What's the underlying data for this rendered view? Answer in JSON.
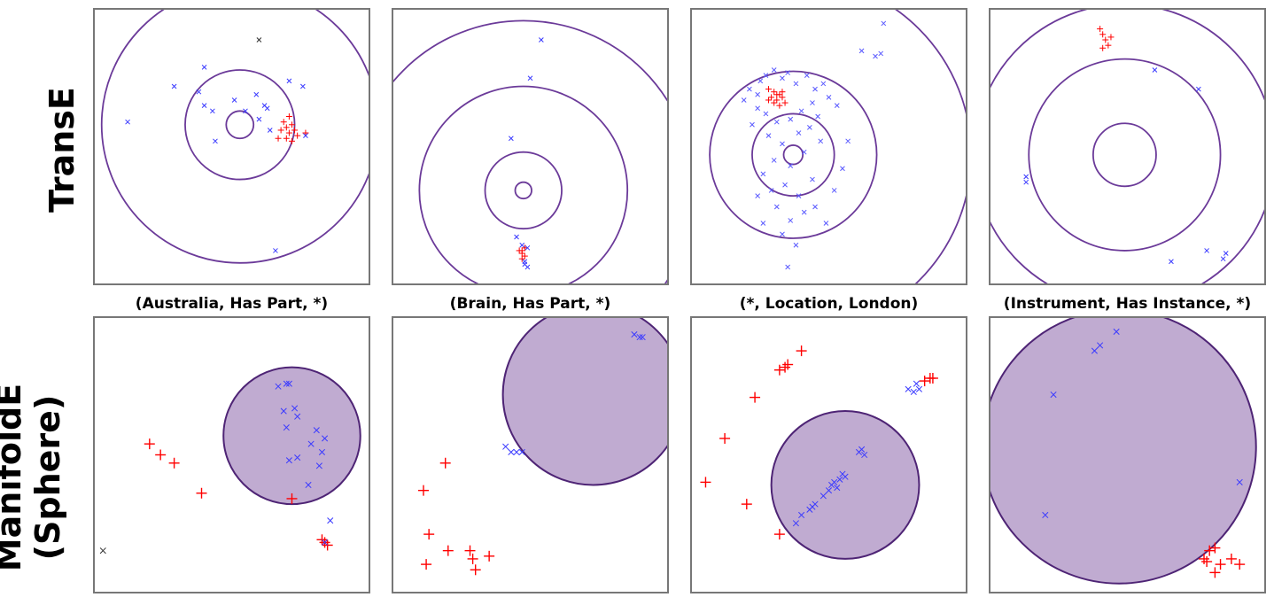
{
  "row_labels": [
    "TransE",
    "ManifoldE",
    "(Sphere)"
  ],
  "column_titles": [
    "(Australia, Has Part, *)",
    "(Brain, Has Part, *)",
    "(*, Location, London)",
    "(Instrument, Has Instance, *)"
  ],
  "colors": {
    "ring": "#6b3a99",
    "sphere_fill": "#b9a2cc",
    "sphere_stroke": "#4e2475",
    "positive": "#ff0000",
    "negative": "#3a3aff",
    "other": "#333333"
  },
  "chart_data": [
    {
      "type": "scatter",
      "row": "TransE",
      "title": "(Australia, Has Part, *)",
      "xlim": [
        0,
        1
      ],
      "ylim": [
        0,
        1
      ],
      "grid": false,
      "rings": {
        "center": [
          0.53,
          0.42
        ],
        "radii": [
          0.05,
          0.2,
          0.505
        ]
      },
      "series": [
        {
          "marker": "+",
          "color": "#ff0000",
          "points": [
            [
              0.69,
              0.41
            ],
            [
              0.7,
              0.43
            ],
            [
              0.72,
              0.42
            ],
            [
              0.68,
              0.44
            ],
            [
              0.71,
              0.45
            ],
            [
              0.73,
              0.44
            ],
            [
              0.67,
              0.47
            ],
            [
              0.7,
              0.47
            ],
            [
              0.74,
              0.46
            ],
            [
              0.72,
              0.48
            ],
            [
              0.71,
              0.39
            ],
            [
              0.77,
              0.45
            ]
          ]
        },
        {
          "marker": "x",
          "color": "#3a3aff",
          "points": [
            [
              0.12,
              0.41
            ],
            [
              0.29,
              0.28
            ],
            [
              0.4,
              0.21
            ],
            [
              0.4,
              0.35
            ],
            [
              0.43,
              0.37
            ],
            [
              0.38,
              0.3
            ],
            [
              0.51,
              0.33
            ],
            [
              0.59,
              0.31
            ],
            [
              0.62,
              0.35
            ],
            [
              0.63,
              0.36
            ],
            [
              0.6,
              0.4
            ],
            [
              0.64,
              0.44
            ],
            [
              0.55,
              0.37
            ],
            [
              0.71,
              0.26
            ],
            [
              0.76,
              0.28
            ],
            [
              0.77,
              0.46
            ],
            [
              0.44,
              0.48
            ],
            [
              0.66,
              0.88
            ]
          ]
        },
        {
          "marker": "x",
          "color": "#333333",
          "points": [
            [
              0.6,
              0.11
            ]
          ]
        }
      ]
    },
    {
      "type": "scatter",
      "row": "TransE",
      "title": "(Brain, Has Part, *)",
      "xlim": [
        0,
        1
      ],
      "ylim": [
        0,
        1
      ],
      "grid": false,
      "rings": {
        "center": [
          0.475,
          0.66
        ],
        "radii": [
          0.03,
          0.14,
          0.38,
          0.62
        ]
      },
      "series": [
        {
          "marker": "+",
          "color": "#ff0000",
          "points": [
            [
              0.47,
              0.88
            ],
            [
              0.48,
              0.87
            ],
            [
              0.47,
              0.89
            ],
            [
              0.48,
              0.9
            ],
            [
              0.46,
              0.88
            ],
            [
              0.47,
              0.91
            ]
          ]
        },
        {
          "marker": "x",
          "color": "#3a3aff",
          "points": [
            [
              0.54,
              0.11
            ],
            [
              0.5,
              0.25
            ],
            [
              0.43,
              0.47
            ],
            [
              0.45,
              0.83
            ],
            [
              0.47,
              0.86
            ],
            [
              0.49,
              0.87
            ],
            [
              0.48,
              0.92
            ],
            [
              0.49,
              0.94
            ],
            [
              0.48,
              0.93
            ]
          ]
        }
      ]
    },
    {
      "type": "scatter",
      "row": "TransE",
      "title": "(*, Location, London)",
      "xlim": [
        0,
        1
      ],
      "ylim": [
        0,
        1
      ],
      "grid": false,
      "rings": {
        "center": [
          0.37,
          0.53
        ],
        "radii": [
          0.035,
          0.15,
          0.305,
          0.65
        ]
      },
      "series": [
        {
          "marker": "+",
          "color": "#ff0000",
          "points": [
            [
              0.28,
              0.29
            ],
            [
              0.3,
              0.3
            ],
            [
              0.32,
              0.31
            ],
            [
              0.29,
              0.32
            ],
            [
              0.31,
              0.33
            ],
            [
              0.33,
              0.32
            ],
            [
              0.3,
              0.34
            ],
            [
              0.32,
              0.35
            ],
            [
              0.34,
              0.34
            ],
            [
              0.28,
              0.33
            ],
            [
              0.31,
              0.31
            ],
            [
              0.33,
              0.3
            ]
          ]
        },
        {
          "marker": "x",
          "color": "#5a5aff",
          "points": [
            [
              0.25,
              0.26
            ],
            [
              0.27,
              0.24
            ],
            [
              0.3,
              0.22
            ],
            [
              0.33,
              0.25
            ],
            [
              0.35,
              0.23
            ],
            [
              0.38,
              0.27
            ],
            [
              0.42,
              0.24
            ],
            [
              0.45,
              0.29
            ],
            [
              0.48,
              0.27
            ],
            [
              0.5,
              0.32
            ],
            [
              0.44,
              0.34
            ],
            [
              0.4,
              0.37
            ],
            [
              0.36,
              0.4
            ],
            [
              0.31,
              0.41
            ],
            [
              0.27,
              0.38
            ],
            [
              0.24,
              0.36
            ],
            [
              0.22,
              0.42
            ],
            [
              0.28,
              0.46
            ],
            [
              0.33,
              0.49
            ],
            [
              0.39,
              0.45
            ],
            [
              0.43,
              0.43
            ],
            [
              0.46,
              0.39
            ],
            [
              0.47,
              0.48
            ],
            [
              0.41,
              0.52
            ],
            [
              0.36,
              0.57
            ],
            [
              0.3,
              0.55
            ],
            [
              0.26,
              0.6
            ],
            [
              0.29,
              0.66
            ],
            [
              0.34,
              0.64
            ],
            [
              0.39,
              0.68
            ],
            [
              0.44,
              0.62
            ],
            [
              0.41,
              0.74
            ],
            [
              0.36,
              0.77
            ],
            [
              0.31,
              0.72
            ],
            [
              0.26,
              0.78
            ],
            [
              0.33,
              0.82
            ],
            [
              0.45,
              0.72
            ],
            [
              0.49,
              0.78
            ],
            [
              0.52,
              0.66
            ],
            [
              0.55,
              0.58
            ],
            [
              0.57,
              0.48
            ],
            [
              0.53,
              0.35
            ],
            [
              0.21,
              0.29
            ],
            [
              0.19,
              0.33
            ],
            [
              0.24,
              0.31
            ],
            [
              0.62,
              0.15
            ],
            [
              0.67,
              0.17
            ],
            [
              0.69,
              0.16
            ],
            [
              0.7,
              0.05
            ],
            [
              0.35,
              0.94
            ],
            [
              0.38,
              0.86
            ],
            [
              0.24,
              0.68
            ]
          ]
        }
      ]
    },
    {
      "type": "scatter",
      "row": "TransE",
      "title": "(Instrument, Has Instance, *)",
      "xlim": [
        0,
        1
      ],
      "ylim": [
        0,
        1
      ],
      "grid": false,
      "rings": {
        "center": [
          0.49,
          0.53
        ],
        "radii": [
          0.115,
          0.35,
          0.55,
          0.81
        ]
      },
      "series": [
        {
          "marker": "+",
          "color": "#ff0000",
          "points": [
            [
              0.4,
              0.07
            ],
            [
              0.41,
              0.09
            ],
            [
              0.42,
              0.11
            ],
            [
              0.44,
              0.1
            ],
            [
              0.43,
              0.13
            ],
            [
              0.41,
              0.14
            ]
          ]
        },
        {
          "marker": "x",
          "color": "#3a3aff",
          "points": [
            [
              0.6,
              0.22
            ],
            [
              0.76,
              0.29
            ],
            [
              0.13,
              0.61
            ],
            [
              0.13,
              0.63
            ],
            [
              0.66,
              0.92
            ],
            [
              0.79,
              0.88
            ],
            [
              0.85,
              0.91
            ],
            [
              0.86,
              0.89
            ]
          ]
        }
      ]
    },
    {
      "type": "scatter",
      "row": "ManifoldE (Sphere)",
      "title": "",
      "xlim": [
        0,
        1
      ],
      "ylim": [
        0,
        1
      ],
      "grid": false,
      "sphere": {
        "center": [
          0.72,
          0.43
        ],
        "radius": 0.25
      },
      "series": [
        {
          "marker": "+",
          "color": "#ff0000",
          "points": [
            [
              0.2,
              0.46
            ],
            [
              0.24,
              0.5
            ],
            [
              0.29,
              0.53
            ],
            [
              0.39,
              0.64
            ],
            [
              0.72,
              0.66
            ],
            [
              0.83,
              0.81
            ],
            [
              0.84,
              0.82
            ],
            [
              0.85,
              0.83
            ]
          ]
        },
        {
          "marker": "x",
          "color": "#3a3aff",
          "points": [
            [
              0.67,
              0.25
            ],
            [
              0.7,
              0.24
            ],
            [
              0.71,
              0.24
            ],
            [
              0.69,
              0.34
            ],
            [
              0.73,
              0.33
            ],
            [
              0.74,
              0.36
            ],
            [
              0.7,
              0.4
            ],
            [
              0.81,
              0.41
            ],
            [
              0.84,
              0.44
            ],
            [
              0.79,
              0.46
            ],
            [
              0.83,
              0.49
            ],
            [
              0.71,
              0.52
            ],
            [
              0.74,
              0.51
            ],
            [
              0.82,
              0.54
            ],
            [
              0.78,
              0.61
            ],
            [
              0.86,
              0.74
            ],
            [
              0.84,
              0.82
            ]
          ]
        },
        {
          "marker": "x",
          "color": "#333333",
          "points": [
            [
              0.03,
              0.85
            ]
          ]
        }
      ]
    },
    {
      "type": "scatter",
      "row": "ManifoldE (Sphere)",
      "title": "",
      "xlim": [
        0,
        1
      ],
      "ylim": [
        0,
        1
      ],
      "grid": false,
      "sphere": {
        "center": [
          0.73,
          0.28
        ],
        "radius": 0.33
      },
      "series": [
        {
          "marker": "+",
          "color": "#ff0000",
          "points": [
            [
              0.19,
              0.53
            ],
            [
              0.11,
              0.63
            ],
            [
              0.13,
              0.79
            ],
            [
              0.2,
              0.85
            ],
            [
              0.28,
              0.85
            ],
            [
              0.12,
              0.9
            ],
            [
              0.3,
              0.92
            ],
            [
              0.35,
              0.87
            ],
            [
              0.29,
              0.88
            ]
          ]
        },
        {
          "marker": "x",
          "color": "#3a3aff",
          "points": [
            [
              0.41,
              0.47
            ],
            [
              0.43,
              0.49
            ],
            [
              0.45,
              0.49
            ],
            [
              0.47,
              0.49
            ],
            [
              0.88,
              0.06
            ],
            [
              0.9,
              0.07
            ],
            [
              0.91,
              0.07
            ]
          ]
        }
      ]
    },
    {
      "type": "scatter",
      "row": "ManifoldE (Sphere)",
      "title": "",
      "xlim": [
        0,
        1
      ],
      "ylim": [
        0,
        1
      ],
      "grid": false,
      "sphere": {
        "center": [
          0.56,
          0.61
        ],
        "radius": 0.27
      },
      "series": [
        {
          "marker": "+",
          "color": "#ff0000",
          "points": [
            [
              0.32,
              0.19
            ],
            [
              0.34,
              0.18
            ],
            [
              0.35,
              0.17
            ],
            [
              0.4,
              0.12
            ],
            [
              0.23,
              0.29
            ],
            [
              0.12,
              0.44
            ],
            [
              0.05,
              0.6
            ],
            [
              0.2,
              0.68
            ],
            [
              0.32,
              0.79
            ],
            [
              0.85,
              0.23
            ],
            [
              0.87,
              0.22
            ],
            [
              0.88,
              0.22
            ]
          ]
        },
        {
          "marker": "x",
          "color": "#3a3aff",
          "points": [
            [
              0.79,
              0.26
            ],
            [
              0.81,
              0.27
            ],
            [
              0.83,
              0.26
            ],
            [
              0.82,
              0.24
            ],
            [
              0.61,
              0.49
            ],
            [
              0.62,
              0.48
            ],
            [
              0.63,
              0.5
            ],
            [
              0.55,
              0.57
            ],
            [
              0.56,
              0.58
            ],
            [
              0.54,
              0.59
            ],
            [
              0.52,
              0.6
            ],
            [
              0.53,
              0.62
            ],
            [
              0.5,
              0.63
            ],
            [
              0.48,
              0.65
            ],
            [
              0.45,
              0.68
            ],
            [
              0.43,
              0.7
            ],
            [
              0.4,
              0.72
            ],
            [
              0.38,
              0.75
            ],
            [
              0.44,
              0.69
            ],
            [
              0.51,
              0.61
            ]
          ]
        }
      ]
    },
    {
      "type": "scatter",
      "row": "ManifoldE (Sphere)",
      "title": "",
      "xlim": [
        0,
        1
      ],
      "ylim": [
        0,
        1
      ],
      "grid": false,
      "sphere": {
        "center": [
          0.47,
          0.47
        ],
        "radius": 0.5
      },
      "series": [
        {
          "marker": "+",
          "color": "#ff0000",
          "points": [
            [
              0.82,
              0.84
            ],
            [
              0.78,
              0.88
            ],
            [
              0.8,
              0.85
            ],
            [
              0.84,
              0.9
            ],
            [
              0.88,
              0.88
            ],
            [
              0.91,
              0.9
            ],
            [
              0.82,
              0.93
            ],
            [
              0.79,
              0.89
            ]
          ]
        },
        {
          "marker": "x",
          "color": "#3a3aff",
          "points": [
            [
              0.46,
              0.05
            ],
            [
              0.4,
              0.1
            ],
            [
              0.38,
              0.12
            ],
            [
              0.23,
              0.28
            ],
            [
              0.2,
              0.72
            ],
            [
              0.91,
              0.6
            ]
          ]
        }
      ]
    }
  ]
}
